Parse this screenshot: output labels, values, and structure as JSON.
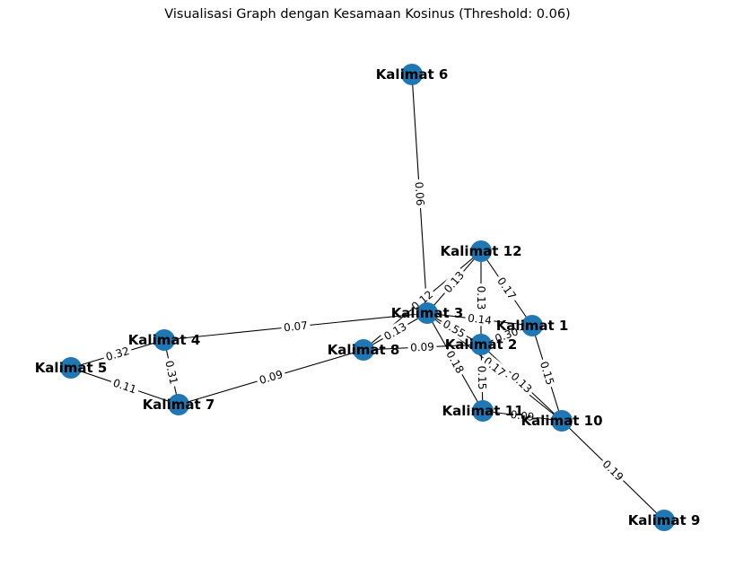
{
  "title": "Visualisasi Graph dengan Kesamaan Kosinus (Threshold: 0.06)",
  "colors": {
    "node": "#1f77b4",
    "edge": "#000000"
  },
  "nodes": [
    {
      "id": "k1",
      "label": "Kalimat 1"
    },
    {
      "id": "k2",
      "label": "Kalimat 2"
    },
    {
      "id": "k3",
      "label": "Kalimat 3"
    },
    {
      "id": "k4",
      "label": "Kalimat 4"
    },
    {
      "id": "k5",
      "label": "Kalimat 5"
    },
    {
      "id": "k6",
      "label": "Kalimat 6"
    },
    {
      "id": "k7",
      "label": "Kalimat 7"
    },
    {
      "id": "k8",
      "label": "Kalimat 8"
    },
    {
      "id": "k9",
      "label": "Kalimat 9"
    },
    {
      "id": "k10",
      "label": "Kalimat 10"
    },
    {
      "id": "k11",
      "label": "Kalimat 11"
    },
    {
      "id": "k12",
      "label": "Kalimat 12"
    }
  ],
  "edges": [
    {
      "source": "k6",
      "target": "k3",
      "weight": "0.06"
    },
    {
      "source": "k3",
      "target": "k4",
      "weight": "0.07"
    },
    {
      "source": "k4",
      "target": "k5",
      "weight": "0.32"
    },
    {
      "source": "k4",
      "target": "k7",
      "weight": "0.31"
    },
    {
      "source": "k5",
      "target": "k7",
      "weight": "0.11"
    },
    {
      "source": "k7",
      "target": "k8",
      "weight": "0.09"
    },
    {
      "source": "k8",
      "target": "k3",
      "weight": "0.13"
    },
    {
      "source": "k8",
      "target": "k2",
      "weight": "0.09"
    },
    {
      "source": "k8",
      "target": "k12",
      "weight": "0.12"
    },
    {
      "source": "k3",
      "target": "k12",
      "weight": "0.13"
    },
    {
      "source": "k12",
      "target": "k2",
      "weight": "0.13"
    },
    {
      "source": "k12",
      "target": "k1",
      "weight": "0.17"
    },
    {
      "source": "k3",
      "target": "k1",
      "weight": "0.14"
    },
    {
      "source": "k3",
      "target": "k2",
      "weight": "0.55"
    },
    {
      "source": "k3",
      "target": "k11",
      "weight": "0.18"
    },
    {
      "source": "k3",
      "target": "k10",
      "weight": "0.17"
    },
    {
      "source": "k1",
      "target": "k10",
      "weight": "0.15"
    },
    {
      "source": "k1",
      "target": "k2",
      "weight": "0.30"
    },
    {
      "source": "k2",
      "target": "k11",
      "weight": "0.15"
    },
    {
      "source": "k2",
      "target": "k10",
      "weight": "0.13"
    },
    {
      "source": "k11",
      "target": "k10",
      "weight": "0.09"
    },
    {
      "source": "k10",
      "target": "k9",
      "weight": "0.19"
    }
  ]
}
